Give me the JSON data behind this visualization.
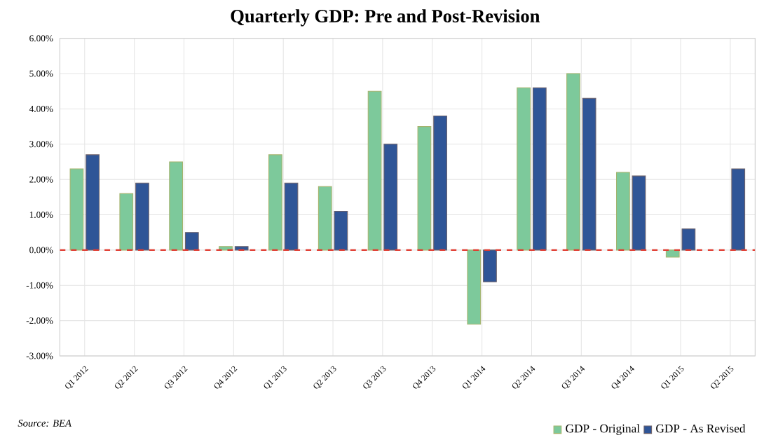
{
  "chart_data": {
    "type": "bar",
    "title": "Quarterly GDP: Pre and Post-Revision",
    "categories": [
      "Q1 2012",
      "Q2 2012",
      "Q3 2012",
      "Q4 2012",
      "Q1 2013",
      "Q2 2013",
      "Q3 2013",
      "Q4 2013",
      "Q1 2014",
      "Q2 2014",
      "Q3 2014",
      "Q4 2014",
      "Q1 2015",
      "Q2 2015"
    ],
    "series": [
      {
        "name": "GDP - Original",
        "color": "#7dc99b",
        "values": [
          2.3,
          1.6,
          2.5,
          0.1,
          2.7,
          1.8,
          4.5,
          3.5,
          -2.1,
          4.6,
          5.0,
          2.2,
          -0.2,
          null
        ]
      },
      {
        "name": "GDP - As Revised",
        "color": "#2f5597",
        "values": [
          2.7,
          1.9,
          0.5,
          0.1,
          1.9,
          1.1,
          3.0,
          3.8,
          -0.9,
          4.6,
          4.3,
          2.1,
          0.6,
          2.3
        ]
      }
    ],
    "ylim": [
      -3,
      6
    ],
    "yticks": [
      {
        "value": -3,
        "label": "-3.00%"
      },
      {
        "value": -2,
        "label": "-2.00%"
      },
      {
        "value": -1,
        "label": "-1.00%"
      },
      {
        "value": 0,
        "label": "0.00%"
      },
      {
        "value": 1,
        "label": "1.00%"
      },
      {
        "value": 2,
        "label": "2.00%"
      },
      {
        "value": 3,
        "label": "3.00%"
      },
      {
        "value": 4,
        "label": "4.00%"
      },
      {
        "value": 5,
        "label": "5.00%"
      },
      {
        "value": 6,
        "label": "6.00%"
      }
    ],
    "ref_lines": [
      {
        "axis": "y",
        "value": 0,
        "color": "#e03c31",
        "line_style": "dashed"
      }
    ],
    "grid": true,
    "legend": "bottom right",
    "annotations": [
      "Source: BEA"
    ]
  }
}
